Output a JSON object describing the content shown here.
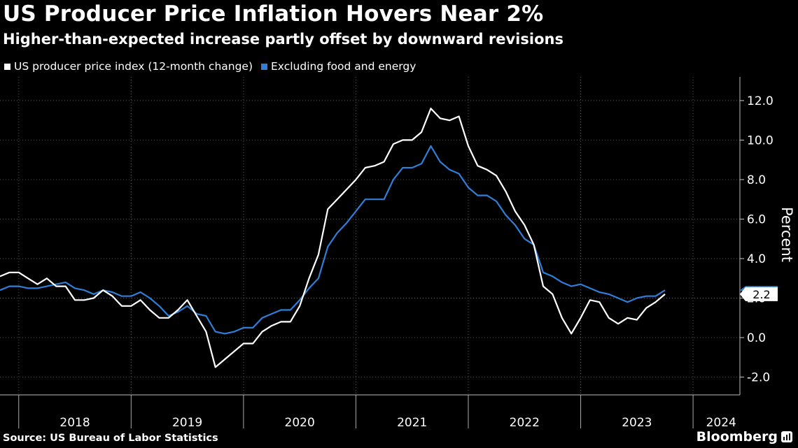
{
  "header": {
    "title": "US Producer Price Inflation Hovers Near 2%",
    "subtitle": "Higher-than-expected increase partly offset by downward revisions"
  },
  "legend": [
    {
      "label": "US producer price index (12-month change)",
      "color": "#ffffff"
    },
    {
      "label": "Excluding food and energy",
      "color": "#2f7fd8"
    }
  ],
  "footer": {
    "source": "Source: US Bureau of Labor Statistics",
    "brand": "Bloomberg"
  },
  "chart_data": {
    "type": "line",
    "title": "US Producer Price Inflation Hovers Near 2%",
    "subtitle": "Higher-than-expected increase partly offset by downward revisions",
    "ylabel": "Percent",
    "ylim": [
      -2.9,
      13.2
    ],
    "yticks": [
      -2.0,
      0.0,
      2.0,
      4.0,
      6.0,
      8.0,
      10.0,
      12.0
    ],
    "ytick_labels": [
      "-2.0",
      "0.0",
      "2.0",
      "4.0",
      "6.0",
      "8.0",
      "10.0",
      "12.0"
    ],
    "y_axis_side": "right",
    "grid": "vertical dotted lines at year boundaries and horizontal dotted lines at y ticks",
    "x_start": "2017-11",
    "x_end": "2024-06",
    "years": [
      "2018",
      "2019",
      "2020",
      "2021",
      "2022",
      "2023",
      "2024"
    ],
    "last_value_label": "2.2",
    "series": [
      {
        "name": "US producer price index (12-month change)",
        "color": "#ffffff",
        "values": [
          3.1,
          3.3,
          3.3,
          3.0,
          2.7,
          3.0,
          2.6,
          2.6,
          1.9,
          1.9,
          2.0,
          2.4,
          2.1,
          1.6,
          1.6,
          1.9,
          1.4,
          1.0,
          1.0,
          1.4,
          1.9,
          1.1,
          0.3,
          -1.5,
          -1.1,
          -0.7,
          -0.3,
          -0.3,
          0.3,
          0.6,
          0.8,
          0.8,
          1.6,
          3.0,
          4.2,
          6.5,
          7.0,
          7.5,
          8.0,
          8.6,
          8.7,
          8.9,
          9.8,
          10.0,
          10.0,
          10.4,
          11.6,
          11.1,
          11.0,
          11.2,
          9.7,
          8.7,
          8.5,
          8.2,
          7.4,
          6.4,
          5.7,
          4.7,
          2.6,
          2.2,
          1.0,
          0.2,
          1.0,
          1.9,
          1.8,
          1.0,
          0.7,
          1.0,
          0.9,
          1.5,
          1.8,
          2.2
        ]
      },
      {
        "name": "Excluding food and energy",
        "color": "#2f7fd8",
        "values": [
          2.4,
          2.6,
          2.6,
          2.5,
          2.5,
          2.6,
          2.7,
          2.8,
          2.5,
          2.4,
          2.2,
          2.4,
          2.3,
          2.1,
          2.1,
          2.3,
          2.0,
          1.6,
          1.1,
          1.3,
          1.6,
          1.2,
          1.1,
          0.3,
          0.2,
          0.3,
          0.5,
          0.5,
          1.0,
          1.2,
          1.4,
          1.4,
          1.9,
          2.5,
          3.0,
          4.6,
          5.3,
          5.8,
          6.4,
          7.0,
          7.0,
          7.0,
          8.0,
          8.6,
          8.6,
          8.8,
          9.7,
          8.9,
          8.5,
          8.3,
          7.6,
          7.2,
          7.2,
          6.9,
          6.2,
          5.7,
          5.0,
          4.7,
          3.3,
          3.1,
          2.8,
          2.6,
          2.7,
          2.5,
          2.3,
          2.2,
          2.0,
          1.8,
          2.0,
          2.1,
          2.1,
          2.4
        ]
      }
    ]
  }
}
